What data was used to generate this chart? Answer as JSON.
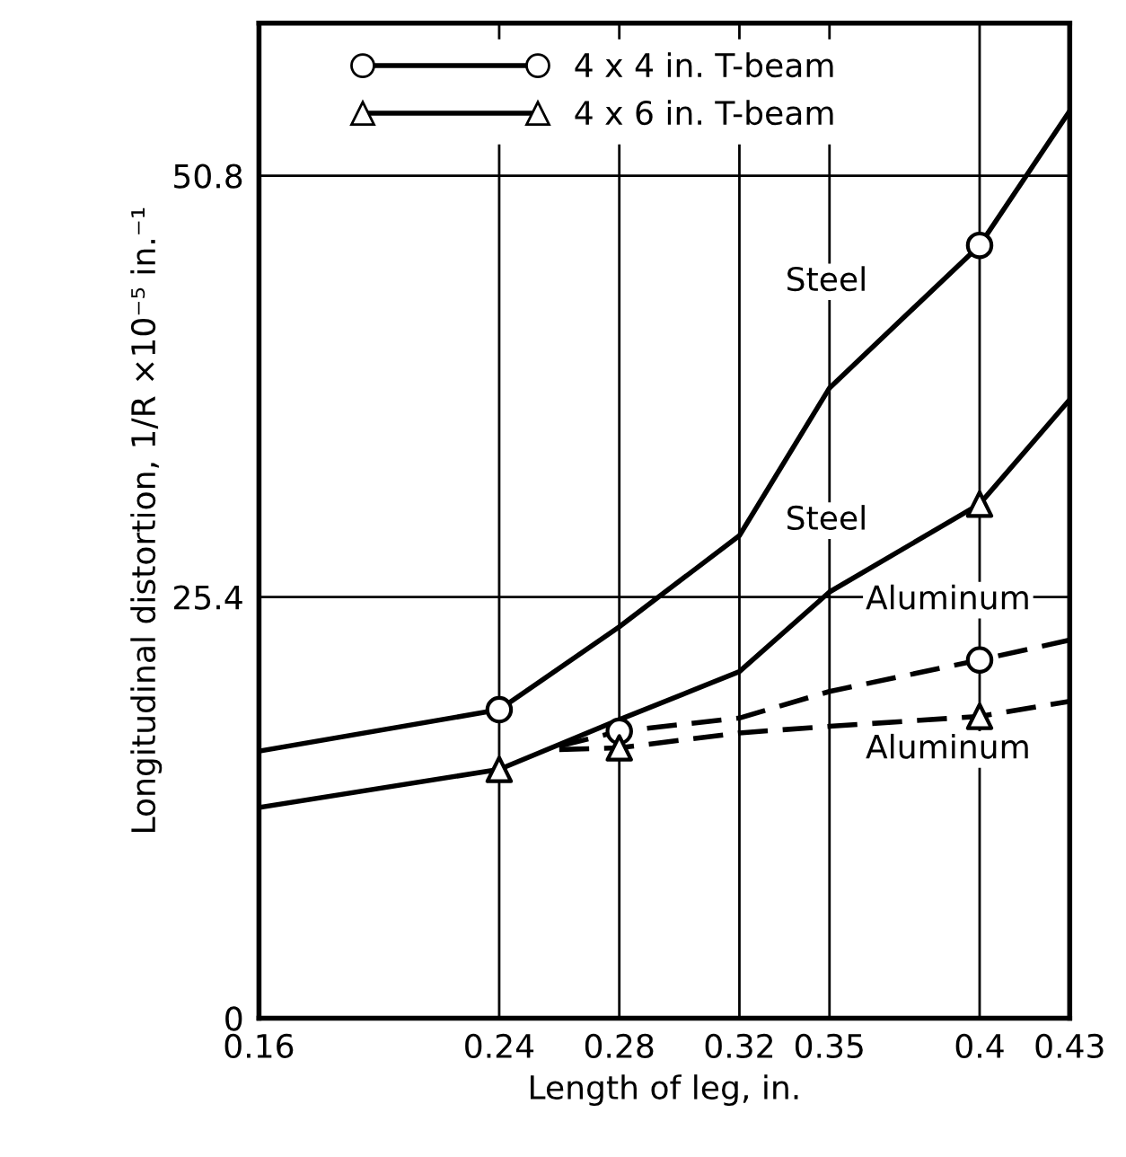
{
  "chart_data": {
    "type": "line",
    "xlabel": "Length of leg, in.",
    "ylabel": "Longitudinal distortion, 1/R ×10⁻⁵ in.⁻¹",
    "xlim": [
      0.16,
      0.43
    ],
    "xticks": [
      0.16,
      0.24,
      0.28,
      0.32,
      0.35,
      0.4,
      0.43
    ],
    "ylim": [
      0,
      60
    ],
    "yticks": [
      0,
      25.4,
      50.8
    ],
    "grid": true,
    "legend": "top left",
    "series": [
      {
        "name": "4 x 4 in. T-beam",
        "color": "#000000",
        "line_style": "solid",
        "x": [
          0.16,
          0.24,
          0.28,
          0.32,
          0.35,
          0.4,
          0.43
        ],
        "values": [
          16.1,
          18.6,
          23.6,
          29.1,
          38.0,
          46.6,
          54.7
        ]
      },
      {
        "name": "4 x 6 in. T-beam",
        "color": "#000000",
        "line_style": "solid",
        "x": [
          0.16,
          0.24,
          0.28,
          0.32,
          0.35,
          0.4,
          0.43
        ],
        "values": [
          12.7,
          15.0,
          18.0,
          20.9,
          25.7,
          31.0,
          37.3
        ]
      },
      {
        "color": "#000000",
        "line_style": "dashed",
        "x": [
          0.26,
          0.28,
          0.32,
          0.35,
          0.4,
          0.43
        ],
        "values": [
          16.4,
          17.3,
          18.1,
          19.7,
          21.6,
          22.8
        ]
      },
      {
        "color": "#000000",
        "line_style": "dashed",
        "x": [
          0.26,
          0.28,
          0.32,
          0.35,
          0.4,
          0.43
        ],
        "values": [
          16.2,
          16.3,
          17.2,
          17.6,
          18.2,
          19.1
        ]
      },
      {
        "type": "scatter",
        "color": "#000000",
        "marker": "circle",
        "x": [
          0.24,
          0.4
        ],
        "values": [
          18.6,
          46.6
        ]
      },
      {
        "type": "scatter",
        "color": "#000000",
        "marker": "triangle",
        "x": [
          0.24,
          0.4
        ],
        "values": [
          15.0,
          31.0
        ]
      },
      {
        "type": "scatter",
        "color": "#000000",
        "marker": "circle",
        "x": [
          0.28,
          0.4
        ],
        "values": [
          17.3,
          21.6
        ]
      },
      {
        "type": "scatter",
        "color": "#000000",
        "marker": "triangle",
        "x": [
          0.28,
          0.4
        ],
        "values": [
          16.3,
          18.2
        ]
      }
    ],
    "annotations": [
      "Steel",
      "Steel",
      "Aluminum",
      "Aluminum"
    ]
  }
}
